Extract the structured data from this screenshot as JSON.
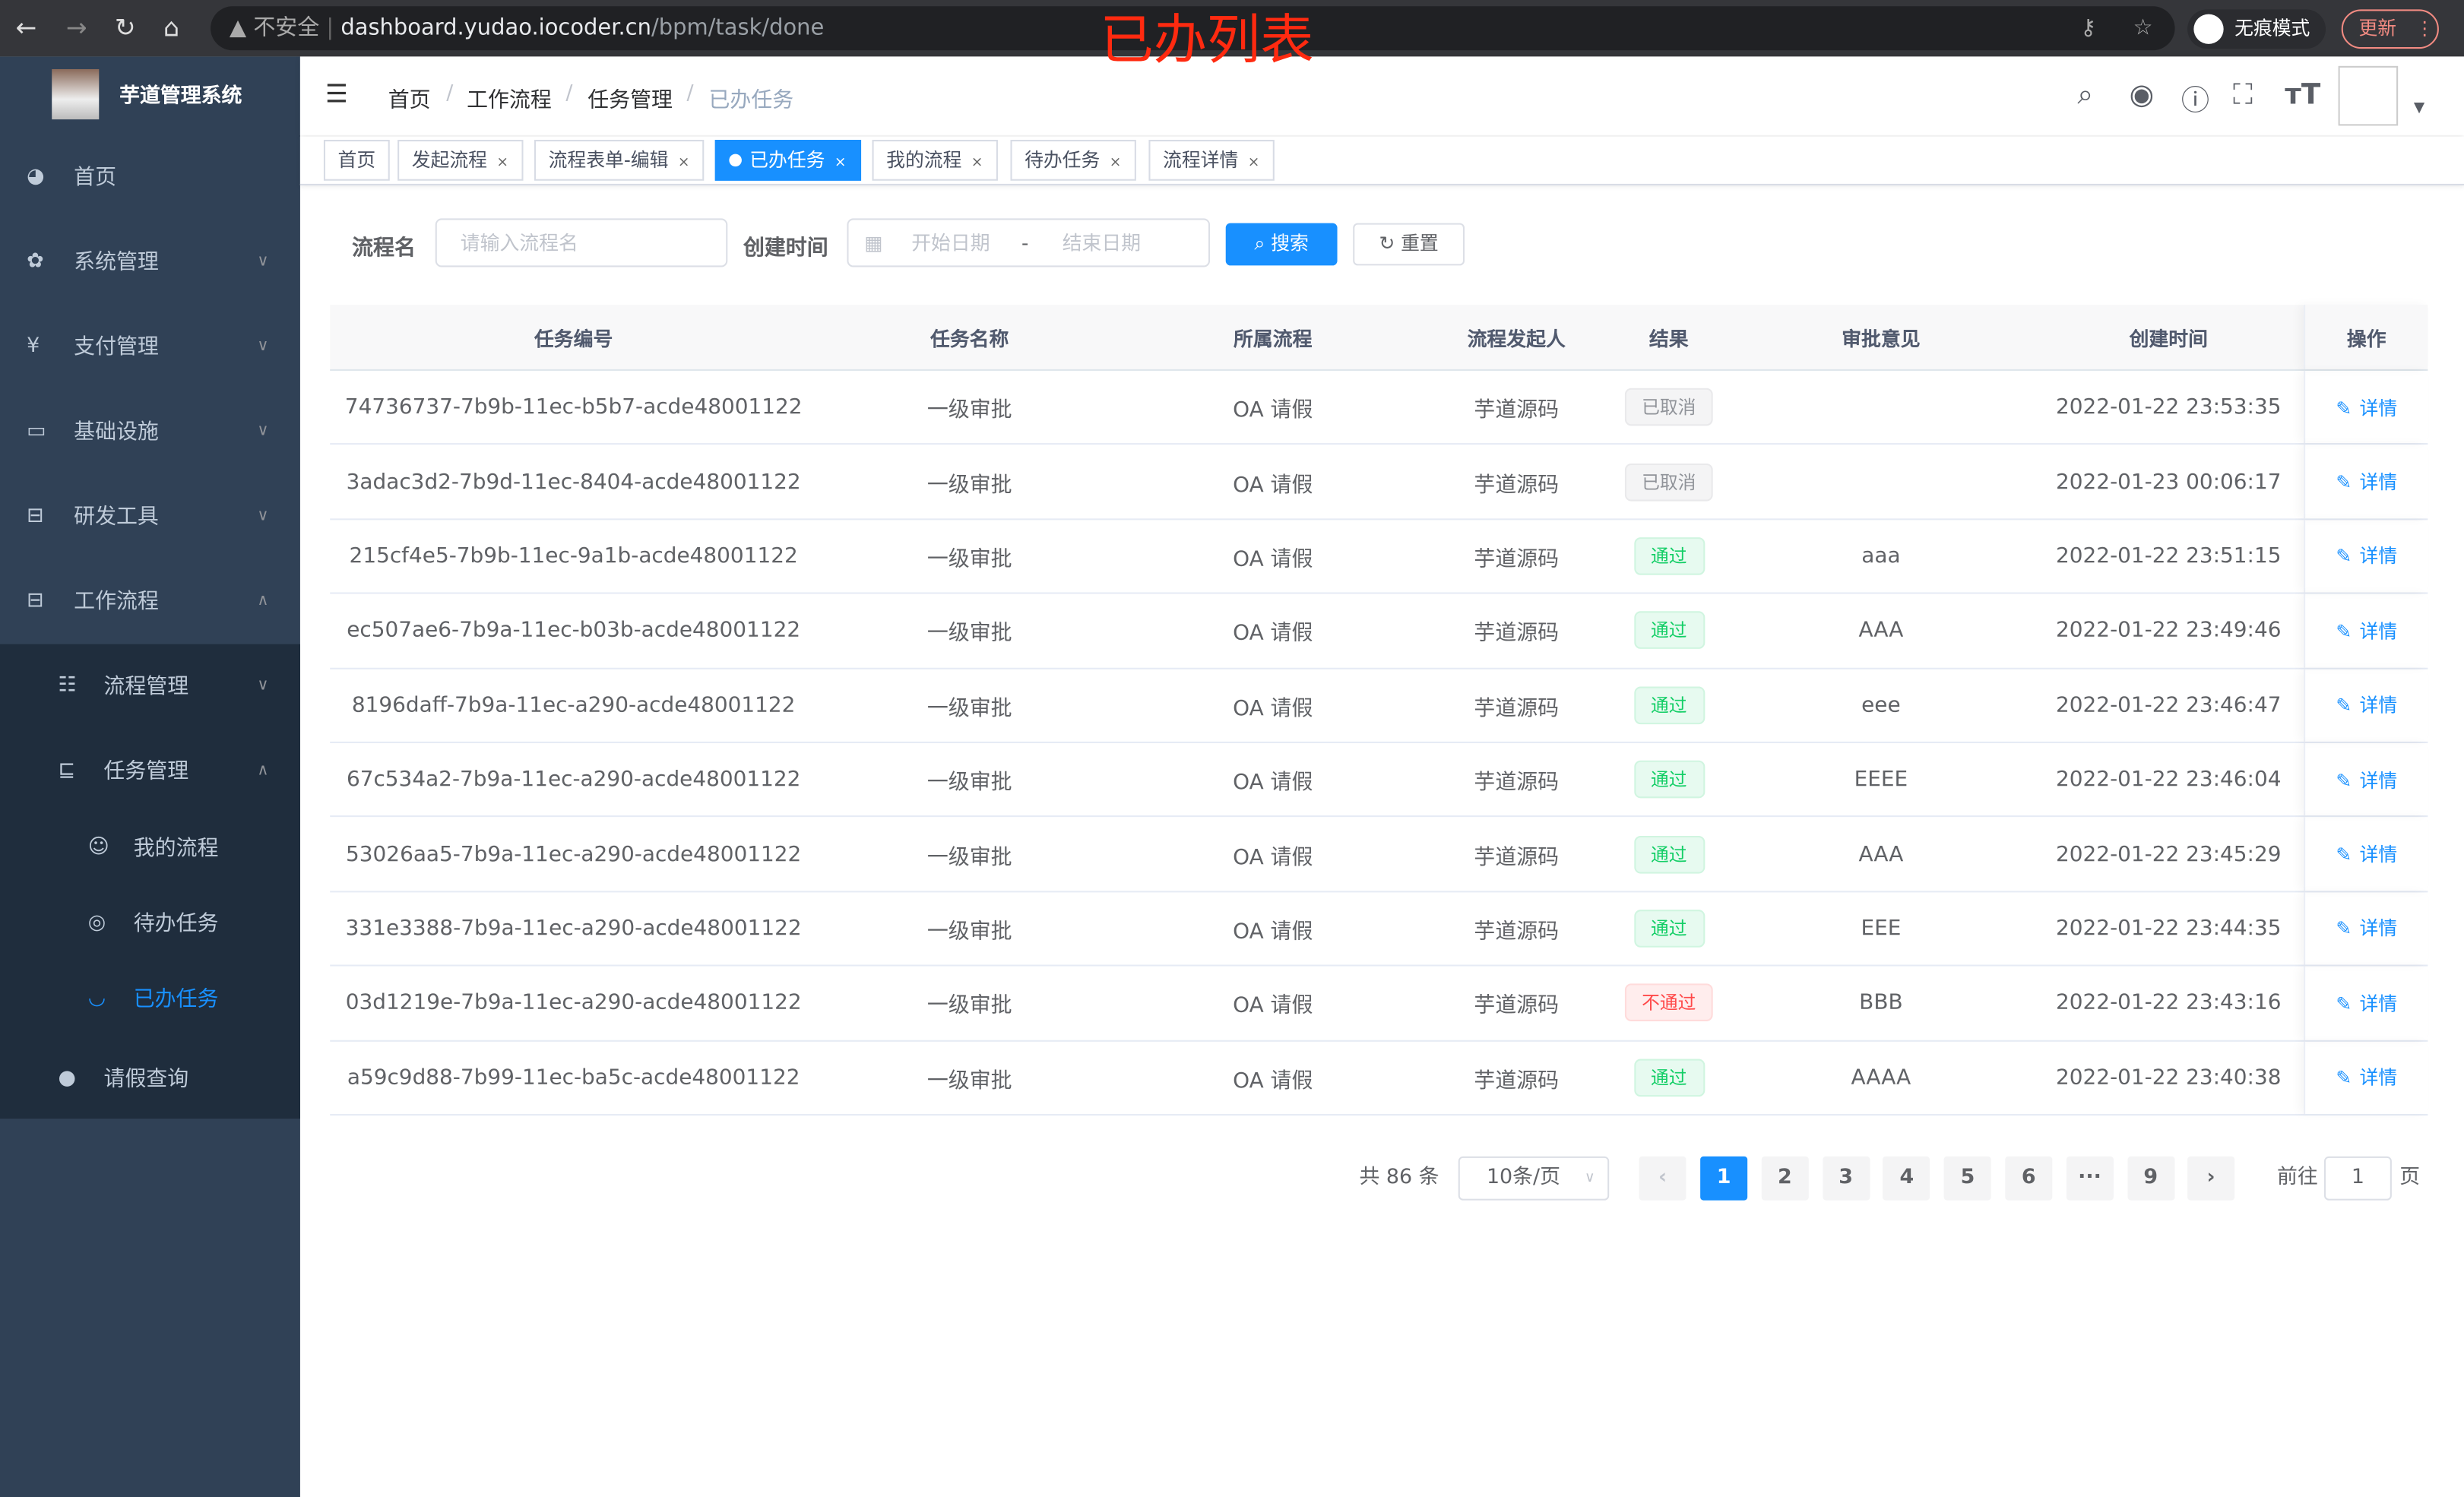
{
  "browser": {
    "security": "不安全",
    "url_host": "dashboard.yudao.iocoder.cn",
    "url_path": "/bpm/task/done",
    "incognito": "无痕模式",
    "update": "更新"
  },
  "annotation": "已办列表",
  "sidebar": {
    "title": "芋道管理系统",
    "items": [
      {
        "label": "首页",
        "icon": "dashboard-icon"
      },
      {
        "label": "系统管理",
        "icon": "gear-icon"
      },
      {
        "label": "支付管理",
        "icon": "yen-icon"
      },
      {
        "label": "基础设施",
        "icon": "monitor-icon"
      },
      {
        "label": "研发工具",
        "icon": "toolbox-icon"
      },
      {
        "label": "工作流程",
        "icon": "toolbox-icon"
      },
      {
        "label": "流程管理",
        "icon": "list-icon"
      },
      {
        "label": "任务管理",
        "icon": "task-icon"
      },
      {
        "label": "我的流程",
        "icon": "face-icon"
      },
      {
        "label": "待办任务",
        "icon": "eye-icon"
      },
      {
        "label": "已办任务",
        "icon": "eye-closed-icon",
        "active": true
      },
      {
        "label": "请假查询",
        "icon": "user-icon"
      }
    ]
  },
  "breadcrumb": [
    "首页",
    "工作流程",
    "任务管理",
    "已办任务"
  ],
  "tags": [
    {
      "label": "首页"
    },
    {
      "label": "发起流程"
    },
    {
      "label": "流程表单-编辑"
    },
    {
      "label": "已办任务",
      "active": true
    },
    {
      "label": "我的流程"
    },
    {
      "label": "待办任务"
    },
    {
      "label": "流程详情"
    }
  ],
  "filters": {
    "name_label": "流程名",
    "name_placeholder": "请输入流程名",
    "time_label": "创建时间",
    "start_placeholder": "开始日期",
    "range_sep": "-",
    "end_placeholder": "结束日期",
    "search": "搜索",
    "reset": "重置"
  },
  "table": {
    "headers": [
      "任务编号",
      "任务名称",
      "所属流程",
      "流程发起人",
      "结果",
      "审批意见",
      "创建时间",
      "操作"
    ],
    "rows": [
      {
        "id": "74736737-7b9b-11ec-b5b7-acde48001122",
        "name": "一级审批",
        "process": "OA 请假",
        "initiator": "芋道源码",
        "result": "已取消",
        "status": "cancel",
        "comment": "",
        "time": "2022-01-22 23:53:35",
        "action": "详情"
      },
      {
        "id": "3adac3d2-7b9d-11ec-8404-acde48001122",
        "name": "一级审批",
        "process": "OA 请假",
        "initiator": "芋道源码",
        "result": "已取消",
        "status": "cancel",
        "comment": "",
        "time": "2022-01-23 00:06:17",
        "action": "详情"
      },
      {
        "id": "215cf4e5-7b9b-11ec-9a1b-acde48001122",
        "name": "一级审批",
        "process": "OA 请假",
        "initiator": "芋道源码",
        "result": "通过",
        "status": "pass",
        "comment": "aaa",
        "time": "2022-01-22 23:51:15",
        "action": "详情"
      },
      {
        "id": "ec507ae6-7b9a-11ec-b03b-acde48001122",
        "name": "一级审批",
        "process": "OA 请假",
        "initiator": "芋道源码",
        "result": "通过",
        "status": "pass",
        "comment": "AAA",
        "time": "2022-01-22 23:49:46",
        "action": "详情"
      },
      {
        "id": "8196daff-7b9a-11ec-a290-acde48001122",
        "name": "一级审批",
        "process": "OA 请假",
        "initiator": "芋道源码",
        "result": "通过",
        "status": "pass",
        "comment": "eee",
        "time": "2022-01-22 23:46:47",
        "action": "详情"
      },
      {
        "id": "67c534a2-7b9a-11ec-a290-acde48001122",
        "name": "一级审批",
        "process": "OA 请假",
        "initiator": "芋道源码",
        "result": "通过",
        "status": "pass",
        "comment": "EEEE",
        "time": "2022-01-22 23:46:04",
        "action": "详情"
      },
      {
        "id": "53026aa5-7b9a-11ec-a290-acde48001122",
        "name": "一级审批",
        "process": "OA 请假",
        "initiator": "芋道源码",
        "result": "通过",
        "status": "pass",
        "comment": "AAA",
        "time": "2022-01-22 23:45:29",
        "action": "详情"
      },
      {
        "id": "331e3388-7b9a-11ec-a290-acde48001122",
        "name": "一级审批",
        "process": "OA 请假",
        "initiator": "芋道源码",
        "result": "通过",
        "status": "pass",
        "comment": "EEE",
        "time": "2022-01-22 23:44:35",
        "action": "详情"
      },
      {
        "id": "03d1219e-7b9a-11ec-a290-acde48001122",
        "name": "一级审批",
        "process": "OA 请假",
        "initiator": "芋道源码",
        "result": "不通过",
        "status": "fail",
        "comment": "BBB",
        "time": "2022-01-22 23:43:16",
        "action": "详情"
      },
      {
        "id": "a59c9d88-7b99-11ec-ba5c-acde48001122",
        "name": "一级审批",
        "process": "OA 请假",
        "initiator": "芋道源码",
        "result": "通过",
        "status": "pass",
        "comment": "AAAA",
        "time": "2022-01-22 23:40:38",
        "action": "详情"
      }
    ]
  },
  "pagination": {
    "total": "共 86 条",
    "page_size": "10条/页",
    "pages": [
      "1",
      "2",
      "3",
      "4",
      "5",
      "6",
      "···",
      "9"
    ],
    "current": "1",
    "goto_label": "前往",
    "goto_value": "1",
    "goto_suffix": "页"
  },
  "colors": {
    "primary": "#1890ff",
    "sidebar": "#304156",
    "submenu": "#1f2d3d",
    "annotation": "#ff2a10"
  }
}
